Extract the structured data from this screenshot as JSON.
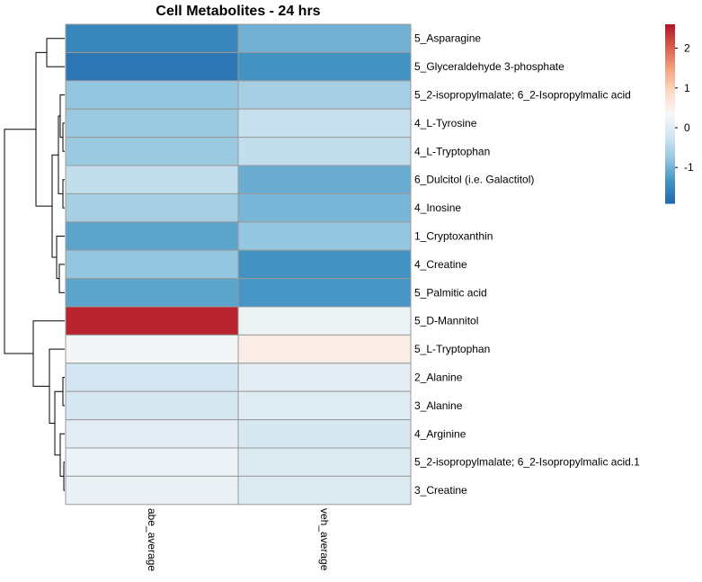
{
  "chart_data": {
    "type": "heatmap",
    "title": "Cell Metabolites - 24 hrs",
    "columns": [
      "abe_average",
      "veh_average"
    ],
    "rows": [
      "5_Asparagine",
      "5_Glyceraldehyde 3-phosphate",
      "5_2-isopropylmalate; 6_2-Isopropylmalic acid",
      "4_L-Tyrosine",
      "4_L-Tryptophan",
      "6_Dulcitol (i.e. Galactitol)",
      "4_Inosine",
      "1_Cryptoxanthin",
      "4_Creatine",
      "5_Palmitic acid",
      "5_D-Mannitol",
      "5_L-Tryptophan",
      "2_Alanine",
      "3_Alanine",
      "4_Arginine",
      "5_2-isopropylmalate; 6_2-Isopropylmalic acid.1",
      "3_Creatine"
    ],
    "values": [
      [
        -1.5,
        -1.0
      ],
      [
        -1.7,
        -1.35
      ],
      [
        -0.75,
        -0.6
      ],
      [
        -0.7,
        -0.3
      ],
      [
        -0.7,
        -0.35
      ],
      [
        -0.35,
        -1.05
      ],
      [
        -0.6,
        -0.95
      ],
      [
        -1.15,
        -0.75
      ],
      [
        -0.75,
        -1.35
      ],
      [
        -1.15,
        -1.3
      ],
      [
        2.5,
        0.2
      ],
      [
        0.3,
        0.55
      ],
      [
        -0.2,
        0.05
      ],
      [
        -0.15,
        0.0
      ],
      [
        0.02,
        -0.12
      ],
      [
        0.18,
        -0.05
      ],
      [
        0.15,
        -0.05
      ]
    ],
    "legend": {
      "ticks": [
        2,
        1,
        0,
        -1
      ],
      "range": [
        -1.9,
        2.6
      ],
      "colors": [
        "#2166ac",
        "#4393c3",
        "#92c5de",
        "#d1e5f0",
        "#f7f7f7",
        "#fddbc7",
        "#f4a582",
        "#d6604d",
        "#b2182b"
      ]
    }
  }
}
